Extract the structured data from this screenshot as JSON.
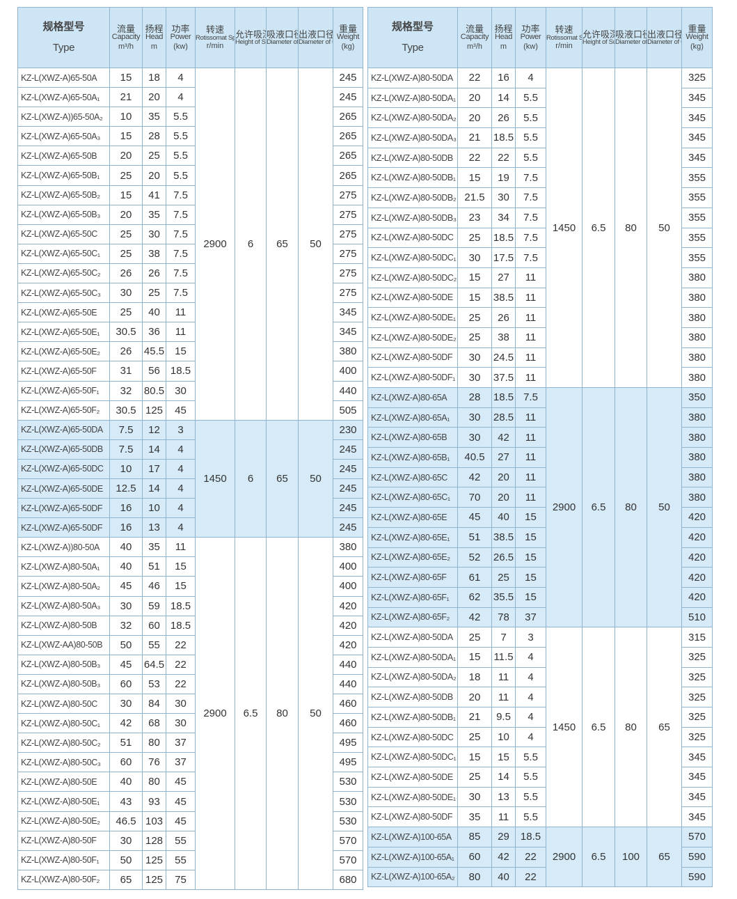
{
  "colors": {
    "header_bg": "#cde5f4",
    "highlight_bg": "#d6eaf8",
    "border": "#8fb4d0"
  },
  "headers": [
    {
      "key": "type",
      "cn": "规格型号",
      "en": "Type",
      "unit": ""
    },
    {
      "key": "capacity",
      "cn": "流量",
      "en": "Capacity",
      "unit": "m³/h"
    },
    {
      "key": "head",
      "cn": "扬程",
      "en": "Head",
      "unit": "m"
    },
    {
      "key": "power",
      "cn": "功率",
      "en": "Power",
      "unit": "(kw)"
    },
    {
      "key": "speed",
      "cn": "转速",
      "en": "Rotissomat Speed",
      "unit": "r/min"
    },
    {
      "key": "suction",
      "cn": "允许吸深",
      "en": "Height of Suciton",
      "unit": ""
    },
    {
      "key": "inlet",
      "cn": "吸液口径",
      "en": "Diameter of Inlet",
      "unit": ""
    },
    {
      "key": "outlet",
      "cn": "出液口径",
      "en": "Diameter of Outlet",
      "unit": ""
    },
    {
      "key": "weight",
      "cn": "重量",
      "en": "Weight",
      "unit": "(kg)"
    }
  ],
  "left": {
    "groups": [
      {
        "speed": "2900",
        "suction": "6",
        "inlet": "65",
        "outlet": "50",
        "highlighted": false,
        "rows": [
          [
            "KZ-L(XWZ-A)65-50A",
            "15",
            "18",
            "4",
            "245"
          ],
          [
            "KZ-L(XWZ-A)65-50A₁",
            "21",
            "20",
            "4",
            "245"
          ],
          [
            "KZ-L(XWZ-A))65-50A₂",
            "10",
            "35",
            "5.5",
            "265"
          ],
          [
            "KZ-L(XWZ-A)65-50A₃",
            "15",
            "28",
            "5.5",
            "265"
          ],
          [
            "KZ-L(XWZ-A)65-50B",
            "20",
            "25",
            "5.5",
            "265"
          ],
          [
            "KZ-L(XWZ-A)65-50B₁",
            "25",
            "20",
            "5.5",
            "265"
          ],
          [
            "KZ-L(XWZ-A)65-50B₂",
            "15",
            "41",
            "7.5",
            "275"
          ],
          [
            "KZ-L(XWZ-A)65-50B₃",
            "20",
            "35",
            "7.5",
            "275"
          ],
          [
            "KZ-L(XWZ-A)65-50C",
            "25",
            "30",
            "7.5",
            "275"
          ],
          [
            "KZ-L(XWZ-A)65-50C₁",
            "25",
            "38",
            "7.5",
            "275"
          ],
          [
            "KZ-L(XWZ-A)65-50C₂",
            "26",
            "26",
            "7.5",
            "275"
          ],
          [
            "KZ-L(XWZ-A)65-50C₃",
            "30",
            "25",
            "7.5",
            "275"
          ],
          [
            "KZ-L(XWZ-A)65-50E",
            "25",
            "40",
            "11",
            "345"
          ],
          [
            "KZ-L(XWZ-A)65-50E₁",
            "30.5",
            "36",
            "11",
            "345"
          ],
          [
            "KZ-L(XWZ-A)65-50E₂",
            "26",
            "45.5",
            "15",
            "380"
          ],
          [
            "KZ-L(XWZ-A)65-50F",
            "31",
            "56",
            "18.5",
            "400"
          ],
          [
            "KZ-L(XWZ-A)65-50F₁",
            "32",
            "80.5",
            "30",
            "440"
          ],
          [
            "KZ-L(XWZ-A)65-50F₂",
            "30.5",
            "125",
            "45",
            "505"
          ]
        ]
      },
      {
        "speed": "1450",
        "suction": "6",
        "inlet": "65",
        "outlet": "50",
        "highlighted": true,
        "rows": [
          [
            "KZ-L(XWZ-A)65-50DA",
            "7.5",
            "12",
            "3",
            "230"
          ],
          [
            "KZ-L(XWZ-A)65-50DB",
            "7.5",
            "14",
            "4",
            "245"
          ],
          [
            "KZ-L(XWZ-A)65-50DC",
            "10",
            "17",
            "4",
            "245"
          ],
          [
            "KZ-L(XWZ-A)65-50DE",
            "12.5",
            "14",
            "4",
            "245"
          ],
          [
            "KZ-L(XWZ-A)65-50DF",
            "16",
            "10",
            "4",
            "245"
          ],
          [
            "KZ-L(XWZ-A)65-50DF",
            "16",
            "13",
            "4",
            "245"
          ]
        ]
      },
      {
        "speed": "2900",
        "suction": "6.5",
        "inlet": "80",
        "outlet": "50",
        "highlighted": false,
        "rows": [
          [
            "KZ-L(XWZ-A))80-50A",
            "40",
            "35",
            "11",
            "380"
          ],
          [
            "KZ-L(XWZ-A)80-50A₁",
            "40",
            "51",
            "15",
            "400"
          ],
          [
            "KZ-L(XWZ-A)80-50A₂",
            "45",
            "46",
            "15",
            "400"
          ],
          [
            "KZ-L(XWZ-A)80-50A₃",
            "30",
            "59",
            "18.5",
            "420"
          ],
          [
            "KZ-L(XWZ-A)80-50B",
            "32",
            "60",
            "18.5",
            "420"
          ],
          [
            "KZ-L(XWZ-AA)80-50B",
            "50",
            "55",
            "22",
            "420"
          ],
          [
            "KZ-L(XWZ-A)80-50B₃",
            "45",
            "64.5",
            "22",
            "440"
          ],
          [
            "KZ-L(XWZ-A)80-50B₃",
            "60",
            "53",
            "22",
            "440"
          ],
          [
            "KZ-L(XWZ-A)80-50C",
            "30",
            "84",
            "30",
            "460"
          ],
          [
            "KZ-L(XWZ-A)80-50C₁",
            "42",
            "68",
            "30",
            "460"
          ],
          [
            "KZ-L(XWZ-A)80-50C₂",
            "51",
            "80",
            "37",
            "495"
          ],
          [
            "KZ-L(XWZ-A)80-50C₃",
            "60",
            "76",
            "37",
            "495"
          ],
          [
            "KZ-L(XWZ-A)80-50E",
            "40",
            "80",
            "45",
            "530"
          ],
          [
            "KZ-L(XWZ-A)80-50E₁",
            "43",
            "93",
            "45",
            "530"
          ],
          [
            "KZ-L(XWZ-A)80-50E₂",
            "46.5",
            "103",
            "45",
            "530"
          ],
          [
            "KZ-L(XWZ-A)80-50F",
            "30",
            "128",
            "55",
            "570"
          ],
          [
            "KZ-L(XWZ-A)80-50F₁",
            "50",
            "125",
            "55",
            "570"
          ],
          [
            "KZ-L(XWZ-A)80-50F₂",
            "65",
            "125",
            "75",
            "680"
          ]
        ]
      }
    ]
  },
  "right": {
    "groups": [
      {
        "speed": "1450",
        "suction": "6.5",
        "inlet": "80",
        "outlet": "50",
        "highlighted": false,
        "rows": [
          [
            "KZ-L(XWZ-A)80-50DA",
            "22",
            "16",
            "4",
            "325"
          ],
          [
            "KZ-L(XWZ-A)80-50DA₁",
            "20",
            "14",
            "5.5",
            "345"
          ],
          [
            "KZ-L(XWZ-A)80-50DA₂",
            "20",
            "26",
            "5.5",
            "345"
          ],
          [
            "KZ-L(XWZ-A)80-50DA₃",
            "21",
            "18.5",
            "5.5",
            "345"
          ],
          [
            "KZ-L(XWZ-A)80-50DB",
            "22",
            "22",
            "5.5",
            "345"
          ],
          [
            "KZ-L(XWZ-A)80-50DB₁",
            "15",
            "19",
            "7.5",
            "355"
          ],
          [
            "KZ-L(XWZ-A)80-50DB₂",
            "21.5",
            "30",
            "7.5",
            "355"
          ],
          [
            "KZ-L(XWZ-A)80-50DB₃",
            "23",
            "34",
            "7.5",
            "355"
          ],
          [
            "KZ-L(XWZ-A)80-50DC",
            "25",
            "18.5",
            "7.5",
            "355"
          ],
          [
            "KZ-L(XWZ-A)80-50DC₁",
            "30",
            "17.5",
            "7.5",
            "355"
          ],
          [
            "KZ-L(XWZ-A)80-50DC₂",
            "15",
            "27",
            "11",
            "380"
          ],
          [
            "KZ-L(XWZ-A)80-50DE",
            "15",
            "38.5",
            "11",
            "380"
          ],
          [
            "KZ-L(XWZ-A)80-50DE₁",
            "25",
            "26",
            "11",
            "380"
          ],
          [
            "KZ-L(XWZ-A)80-50DE₂",
            "25",
            "38",
            "11",
            "380"
          ],
          [
            "KZ-L(XWZ-A)80-50DF",
            "30",
            "24.5",
            "11",
            "380"
          ],
          [
            "KZ-L(XWZ-A)80-50DF₁",
            "30",
            "37.5",
            "11",
            "380"
          ]
        ]
      },
      {
        "speed": "2900",
        "suction": "6.5",
        "inlet": "80",
        "outlet": "50",
        "highlighted": true,
        "rows": [
          [
            "KZ-L(XWZ-A)80-65A",
            "28",
            "18.5",
            "7.5",
            "350"
          ],
          [
            "KZ-L(XWZ-A)80-65A₁",
            "30",
            "28.5",
            "11",
            "380"
          ],
          [
            "KZ-L(XWZ-A)80-65B",
            "30",
            "42",
            "11",
            "380"
          ],
          [
            "KZ-L(XWZ-A)80-65B₁",
            "40.5",
            "27",
            "11",
            "380"
          ],
          [
            "KZ-L(XWZ-A)80-65C",
            "42",
            "20",
            "11",
            "380"
          ],
          [
            "KZ-L(XWZ-A)80-65C₁",
            "70",
            "20",
            "11",
            "380"
          ],
          [
            "KZ-L(XWZ-A)80-65E",
            "45",
            "40",
            "15",
            "420"
          ],
          [
            "KZ-L(XWZ-A)80-65E₁",
            "51",
            "38.5",
            "15",
            "420"
          ],
          [
            "KZ-L(XWZ-A)80-65E₂",
            "52",
            "26.5",
            "15",
            "420"
          ],
          [
            "KZ-L(XWZ-A)80-65F",
            "61",
            "25",
            "15",
            "420"
          ],
          [
            "KZ-L(XWZ-A)80-65F₁",
            "62",
            "35.5",
            "15",
            "420"
          ],
          [
            "KZ-L(XWZ-A)80-65F₂",
            "42",
            "78",
            "37",
            "510"
          ]
        ]
      },
      {
        "speed": "1450",
        "suction": "6.5",
        "inlet": "80",
        "outlet": "65",
        "highlighted": false,
        "rows": [
          [
            "KZ-L(XWZ-A)80-50DA",
            "25",
            "7",
            "3",
            "315"
          ],
          [
            "KZ-L(XWZ-A)80-50DA₁",
            "15",
            "11.5",
            "4",
            "325"
          ],
          [
            "KZ-L(XWZ-A)80-50DA₂",
            "18",
            "11",
            "4",
            "325"
          ],
          [
            "KZ-L(XWZ-A)80-50DB",
            "20",
            "11",
            "4",
            "325"
          ],
          [
            "KZ-L(XWZ-A)80-50DB₁",
            "21",
            "9.5",
            "4",
            "325"
          ],
          [
            "KZ-L(XWZ-A)80-50DC",
            "25",
            "10",
            "4",
            "325"
          ],
          [
            "KZ-L(XWZ-A)80-50DC₁",
            "15",
            "15",
            "5.5",
            "345"
          ],
          [
            "KZ-L(XWZ-A)80-50DE",
            "25",
            "14",
            "5.5",
            "345"
          ],
          [
            "KZ-L(XWZ-A)80-50DE₁",
            "30",
            "13",
            "5.5",
            "345"
          ],
          [
            "KZ-L(XWZ-A)80-50DF",
            "35",
            "11",
            "5.5",
            "345"
          ]
        ]
      },
      {
        "speed": "2900",
        "suction": "6.5",
        "inlet": "100",
        "outlet": "65",
        "highlighted": true,
        "rows": [
          [
            "KZ-L(XWZ-A)100-65A",
            "85",
            "29",
            "18.5",
            "570"
          ],
          [
            "KZ-L(XWZ-A)100-65A₁",
            "60",
            "42",
            "22",
            "590"
          ],
          [
            "KZ-L(XWZ-A)100-65A₂",
            "80",
            "40",
            "22",
            "590"
          ]
        ]
      }
    ]
  }
}
